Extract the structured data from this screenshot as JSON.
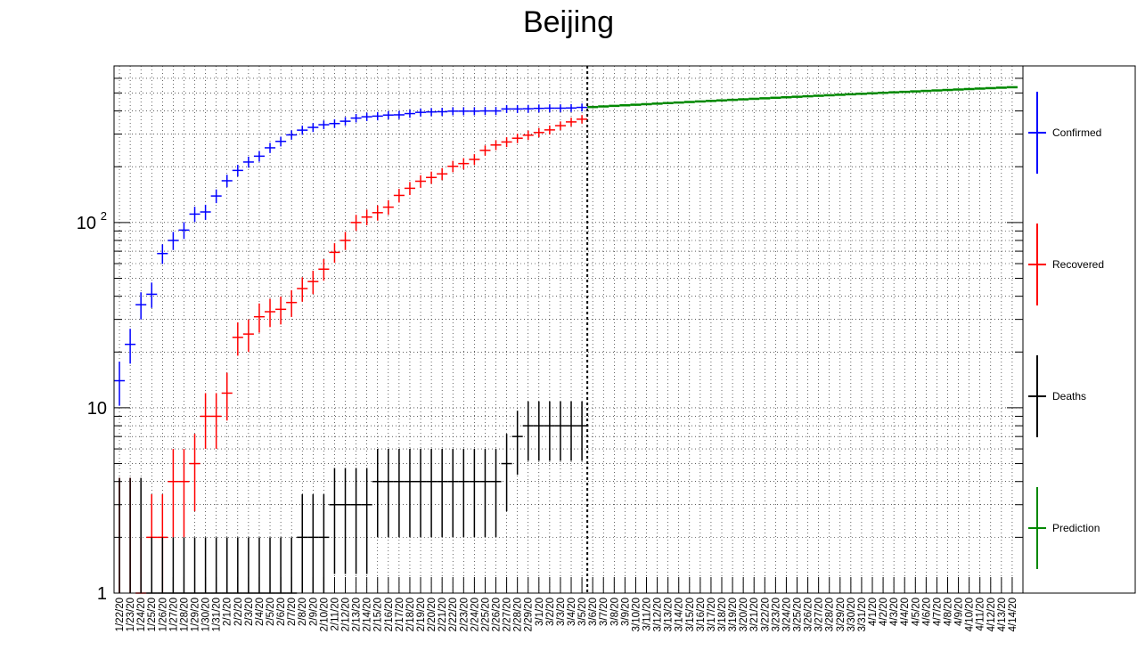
{
  "chart_data": {
    "type": "scatter",
    "title": "Beijing",
    "y_scale": "log",
    "ylim": [
      1,
      700
    ],
    "y_ticks": [
      {
        "value": 1,
        "label": "1"
      },
      {
        "value": 10,
        "label": "10"
      },
      {
        "value": 100,
        "label": "10",
        "exponent": "2"
      }
    ],
    "grid": true,
    "legend_placement": "right",
    "colors": {
      "Confirmed": "#0000ff",
      "Recovered": "#ff0000",
      "Deaths": "#000000",
      "Prediction": "#008800"
    },
    "x_labels": [
      "1/22/20",
      "1/23/20",
      "1/24/20",
      "1/25/20",
      "1/26/20",
      "1/27/20",
      "1/28/20",
      "1/29/20",
      "1/30/20",
      "1/31/20",
      "2/1/20",
      "2/2/20",
      "2/3/20",
      "2/4/20",
      "2/5/20",
      "2/6/20",
      "2/7/20",
      "2/8/20",
      "2/9/20",
      "2/10/20",
      "2/11/20",
      "2/12/20",
      "2/13/20",
      "2/14/20",
      "2/15/20",
      "2/16/20",
      "2/17/20",
      "2/18/20",
      "2/19/20",
      "2/20/20",
      "2/21/20",
      "2/22/20",
      "2/23/20",
      "2/24/20",
      "2/25/20",
      "2/26/20",
      "2/27/20",
      "2/28/20",
      "2/29/20",
      "3/1/20",
      "3/2/20",
      "3/3/20",
      "3/4/20",
      "3/5/20",
      "3/6/20",
      "3/7/20",
      "3/8/20",
      "3/9/20",
      "3/10/20",
      "3/11/20",
      "3/12/20",
      "3/13/20",
      "3/14/20",
      "3/15/20",
      "3/16/20",
      "3/17/20",
      "3/18/20",
      "3/19/20",
      "3/20/20",
      "3/21/20",
      "3/22/20",
      "3/23/20",
      "3/24/20",
      "3/25/20",
      "3/26/20",
      "3/27/20",
      "3/28/20",
      "3/29/20",
      "3/30/20",
      "3/31/20",
      "4/1/20",
      "4/2/20",
      "4/3/20",
      "4/4/20",
      "4/5/20",
      "4/6/20",
      "4/7/20",
      "4/8/20",
      "4/9/20",
      "4/10/20",
      "4/11/20",
      "4/12/20",
      "4/13/20",
      "4/14/20"
    ],
    "vertical_marker_date": "3/6/20",
    "series": [
      {
        "name": "Confirmed",
        "values": [
          14,
          22,
          36,
          41,
          68,
          80,
          91,
          111,
          114,
          139,
          168,
          191,
          212,
          228,
          253,
          274,
          297,
          315,
          326,
          337,
          342,
          352,
          366,
          372,
          375,
          380,
          381,
          387,
          393,
          395,
          396,
          399,
          399,
          399,
          400,
          400,
          410,
          410,
          411,
          413,
          414,
          414,
          415,
          418
        ]
      },
      {
        "name": "Recovered",
        "values": [
          0,
          0,
          1,
          2,
          2,
          4,
          4,
          5,
          9,
          9,
          12,
          24,
          25,
          31,
          33,
          34,
          37,
          44,
          48,
          56,
          69,
          80,
          100,
          107,
          113,
          121,
          140,
          153,
          167,
          175,
          183,
          201,
          208,
          219,
          245,
          262,
          272,
          285,
          296,
          306,
          316,
          333,
          349,
          361
        ]
      },
      {
        "name": "Deaths",
        "values": [
          0,
          0,
          0,
          1,
          1,
          1,
          1,
          1,
          1,
          1,
          1,
          1,
          1,
          1,
          1,
          1,
          1,
          2,
          2,
          2,
          3,
          3,
          3,
          3,
          4,
          4,
          4,
          4,
          4,
          4,
          4,
          4,
          4,
          4,
          4,
          4,
          5,
          7,
          8,
          8,
          8,
          8,
          8,
          8
        ]
      },
      {
        "name": "Prediction",
        "values": [
          420,
          423,
          426,
          429,
          432,
          435,
          438,
          441,
          444,
          447,
          450,
          453,
          456,
          459,
          462,
          465,
          468,
          471,
          474,
          477,
          480,
          483,
          486,
          489,
          492,
          495,
          498,
          501,
          504,
          507,
          510,
          513,
          516,
          519,
          522,
          525,
          528,
          531,
          534,
          537
        ]
      }
    ]
  }
}
